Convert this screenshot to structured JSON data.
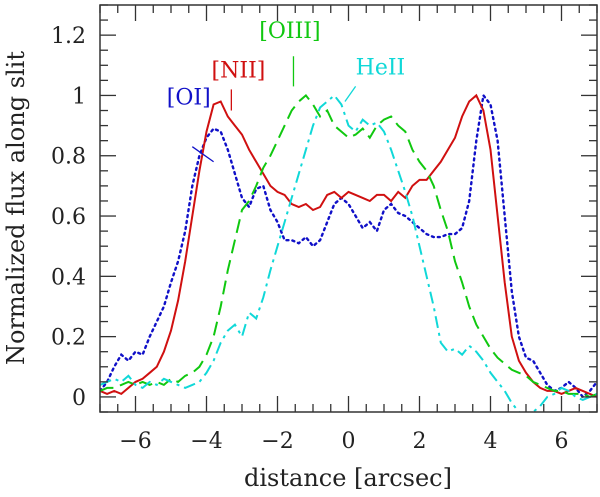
{
  "chart_data": {
    "type": "line",
    "title": "",
    "xlabel": "distance [arcsec]",
    "ylabel": "Normalized flux along slit",
    "xlim": [
      -7,
      7
    ],
    "ylim": [
      -0.05,
      1.3
    ],
    "xticks": [
      -6,
      -4,
      -2,
      0,
      2,
      4,
      6
    ],
    "xtick_labels": [
      "−6",
      "−4",
      "−2",
      "0",
      "2",
      "4",
      "6"
    ],
    "yticks": [
      0,
      0.2,
      0.4,
      0.6,
      0.8,
      1,
      1.2
    ],
    "ytick_labels": [
      "0",
      "0.2",
      "0.4",
      "0.6",
      "0.8",
      "1",
      "1.2"
    ],
    "grid": false,
    "legend": "inline labels with pointer lines",
    "series": [
      {
        "name": "[OI]",
        "color": "#1010c8",
        "dash": "dotted",
        "label_at": [
          -4.5,
          0.97
        ],
        "pointer": [
          [
            -4.4,
            0.83
          ],
          [
            -3.8,
            0.78
          ]
        ],
        "x": [
          -7.0,
          -6.8,
          -6.6,
          -6.4,
          -6.2,
          -6.0,
          -5.8,
          -5.6,
          -5.4,
          -5.2,
          -5.0,
          -4.8,
          -4.6,
          -4.4,
          -4.2,
          -4.0,
          -3.8,
          -3.6,
          -3.4,
          -3.2,
          -3.0,
          -2.8,
          -2.6,
          -2.4,
          -2.2,
          -2.0,
          -1.8,
          -1.6,
          -1.4,
          -1.2,
          -1.0,
          -0.8,
          -0.6,
          -0.4,
          -0.2,
          0.0,
          0.2,
          0.4,
          0.6,
          0.8,
          1.0,
          1.2,
          1.4,
          1.6,
          1.8,
          2.0,
          2.2,
          2.4,
          2.6,
          2.8,
          3.0,
          3.2,
          3.4,
          3.6,
          3.8,
          4.0,
          4.2,
          4.4,
          4.6,
          4.8,
          5.0,
          5.2,
          5.4,
          5.6,
          5.8,
          6.0,
          6.2,
          6.4,
          6.6,
          6.8,
          7.0
        ],
        "y": [
          0.02,
          0.05,
          0.1,
          0.14,
          0.12,
          0.15,
          0.14,
          0.2,
          0.25,
          0.3,
          0.38,
          0.45,
          0.55,
          0.7,
          0.8,
          0.86,
          0.89,
          0.88,
          0.82,
          0.74,
          0.66,
          0.63,
          0.69,
          0.7,
          0.62,
          0.58,
          0.52,
          0.52,
          0.51,
          0.53,
          0.5,
          0.52,
          0.58,
          0.64,
          0.66,
          0.64,
          0.6,
          0.56,
          0.58,
          0.55,
          0.62,
          0.64,
          0.61,
          0.6,
          0.58,
          0.56,
          0.54,
          0.53,
          0.53,
          0.54,
          0.54,
          0.56,
          0.65,
          0.85,
          1.0,
          0.97,
          0.85,
          0.6,
          0.35,
          0.2,
          0.13,
          0.12,
          0.08,
          0.04,
          0.02,
          0.03,
          0.05,
          0.03,
          0.0,
          0.02,
          0.05
        ]
      },
      {
        "name": "[NII]",
        "color": "#d01010",
        "dash": "solid",
        "label_at": [
          -3.1,
          1.06
        ],
        "pointer": [
          [
            -3.3,
            1.02
          ],
          [
            -3.3,
            0.95
          ]
        ],
        "x": [
          -7.0,
          -6.8,
          -6.6,
          -6.4,
          -6.2,
          -6.0,
          -5.8,
          -5.6,
          -5.4,
          -5.2,
          -5.0,
          -4.8,
          -4.6,
          -4.4,
          -4.2,
          -4.0,
          -3.8,
          -3.6,
          -3.4,
          -3.2,
          -3.0,
          -2.8,
          -2.6,
          -2.4,
          -2.2,
          -2.0,
          -1.8,
          -1.6,
          -1.4,
          -1.2,
          -1.0,
          -0.8,
          -0.6,
          -0.4,
          -0.2,
          0.0,
          0.2,
          0.4,
          0.6,
          0.8,
          1.0,
          1.2,
          1.4,
          1.6,
          1.8,
          2.0,
          2.2,
          2.4,
          2.6,
          2.8,
          3.0,
          3.2,
          3.4,
          3.6,
          3.8,
          4.0,
          4.2,
          4.4,
          4.6,
          4.8,
          5.0,
          5.2,
          5.4,
          5.6,
          5.8,
          6.0,
          6.2,
          6.4,
          6.6,
          6.8,
          7.0
        ],
        "y": [
          0.02,
          0.01,
          0.02,
          0.01,
          0.03,
          0.05,
          0.06,
          0.08,
          0.1,
          0.15,
          0.22,
          0.32,
          0.45,
          0.6,
          0.75,
          0.88,
          0.97,
          0.98,
          0.93,
          0.9,
          0.87,
          0.82,
          0.78,
          0.74,
          0.7,
          0.68,
          0.67,
          0.64,
          0.63,
          0.64,
          0.62,
          0.63,
          0.67,
          0.68,
          0.66,
          0.68,
          0.67,
          0.66,
          0.65,
          0.67,
          0.67,
          0.65,
          0.68,
          0.66,
          0.7,
          0.72,
          0.72,
          0.75,
          0.78,
          0.82,
          0.86,
          0.93,
          0.98,
          1.0,
          0.95,
          0.82,
          0.6,
          0.38,
          0.2,
          0.12,
          0.08,
          0.05,
          0.03,
          0.02,
          0.02,
          0.01,
          0.02,
          0.03,
          0.02,
          0.01,
          0.0
        ]
      },
      {
        "name": "[OIII]",
        "color": "#10c810",
        "dash": "dashed",
        "label_at": [
          -1.65,
          1.19
        ],
        "pointer": [
          [
            -1.55,
            1.13
          ],
          [
            -1.55,
            1.03
          ]
        ],
        "x": [
          -7.0,
          -6.8,
          -6.6,
          -6.4,
          -6.2,
          -6.0,
          -5.8,
          -5.6,
          -5.4,
          -5.2,
          -5.0,
          -4.8,
          -4.6,
          -4.4,
          -4.2,
          -4.0,
          -3.8,
          -3.6,
          -3.4,
          -3.2,
          -3.0,
          -2.8,
          -2.6,
          -2.4,
          -2.2,
          -2.0,
          -1.8,
          -1.6,
          -1.4,
          -1.2,
          -1.0,
          -0.8,
          -0.6,
          -0.4,
          -0.2,
          0.0,
          0.2,
          0.4,
          0.6,
          0.8,
          1.0,
          1.2,
          1.4,
          1.6,
          1.8,
          2.0,
          2.2,
          2.4,
          2.6,
          2.8,
          3.0,
          3.2,
          3.4,
          3.6,
          3.8,
          4.0,
          4.2,
          4.4,
          4.6,
          4.8,
          5.0,
          5.2,
          5.4,
          5.6,
          5.8,
          6.0,
          6.2,
          6.4,
          6.6,
          6.8,
          7.0
        ],
        "y": [
          0.02,
          0.03,
          0.03,
          0.04,
          0.05,
          0.04,
          0.05,
          0.04,
          0.05,
          0.04,
          0.06,
          0.05,
          0.07,
          0.08,
          0.1,
          0.14,
          0.2,
          0.3,
          0.42,
          0.52,
          0.62,
          0.65,
          0.7,
          0.76,
          0.8,
          0.85,
          0.9,
          0.95,
          0.98,
          1.0,
          0.97,
          0.93,
          0.95,
          0.9,
          0.88,
          0.86,
          0.87,
          0.89,
          0.86,
          0.9,
          0.92,
          0.93,
          0.9,
          0.88,
          0.82,
          0.78,
          0.75,
          0.7,
          0.62,
          0.55,
          0.45,
          0.38,
          0.3,
          0.24,
          0.2,
          0.16,
          0.13,
          0.11,
          0.09,
          0.08,
          0.07,
          0.05,
          0.04,
          0.03,
          0.02,
          0.02,
          0.01,
          0.01,
          0.01,
          0.0,
          0.01
        ]
      },
      {
        "name": "HeII",
        "color": "#10d8d8",
        "dash": "dashdot",
        "label_at": [
          0.9,
          1.07
        ],
        "pointer": [
          [
            0.2,
            1.03
          ],
          [
            -0.1,
            0.98
          ]
        ],
        "x": [
          -7.0,
          -6.8,
          -6.6,
          -6.4,
          -6.2,
          -6.0,
          -5.8,
          -5.6,
          -5.4,
          -5.2,
          -5.0,
          -4.8,
          -4.6,
          -4.4,
          -4.2,
          -4.0,
          -3.8,
          -3.6,
          -3.4,
          -3.2,
          -3.0,
          -2.8,
          -2.6,
          -2.4,
          -2.2,
          -2.0,
          -1.8,
          -1.6,
          -1.4,
          -1.2,
          -1.0,
          -0.8,
          -0.6,
          -0.4,
          -0.2,
          0.0,
          0.2,
          0.4,
          0.6,
          0.8,
          1.0,
          1.2,
          1.4,
          1.6,
          1.8,
          2.0,
          2.2,
          2.4,
          2.6,
          2.8,
          3.0,
          3.2,
          3.4,
          3.6,
          3.8,
          4.0,
          4.2,
          4.4,
          4.6,
          4.8,
          5.0,
          5.2,
          5.4,
          5.6,
          5.8,
          6.0,
          6.2,
          6.4,
          6.6,
          6.8,
          7.0
        ],
        "y": [
          0.04,
          0.05,
          0.06,
          0.05,
          0.07,
          0.04,
          0.03,
          0.05,
          0.04,
          0.06,
          0.05,
          0.04,
          0.03,
          0.04,
          0.05,
          0.08,
          0.12,
          0.18,
          0.22,
          0.24,
          0.2,
          0.28,
          0.26,
          0.33,
          0.42,
          0.5,
          0.58,
          0.66,
          0.74,
          0.82,
          0.9,
          0.96,
          0.98,
          1.0,
          0.97,
          0.9,
          0.88,
          0.92,
          0.9,
          0.91,
          0.88,
          0.82,
          0.75,
          0.68,
          0.6,
          0.5,
          0.4,
          0.3,
          0.18,
          0.15,
          0.16,
          0.14,
          0.17,
          0.15,
          0.12,
          0.08,
          0.05,
          0.02,
          -0.02,
          -0.05,
          -0.06,
          -0.05,
          -0.03,
          0.0,
          0.01,
          0.03,
          0.02,
          0.0,
          -0.01,
          0.0,
          0.01
        ]
      }
    ]
  }
}
